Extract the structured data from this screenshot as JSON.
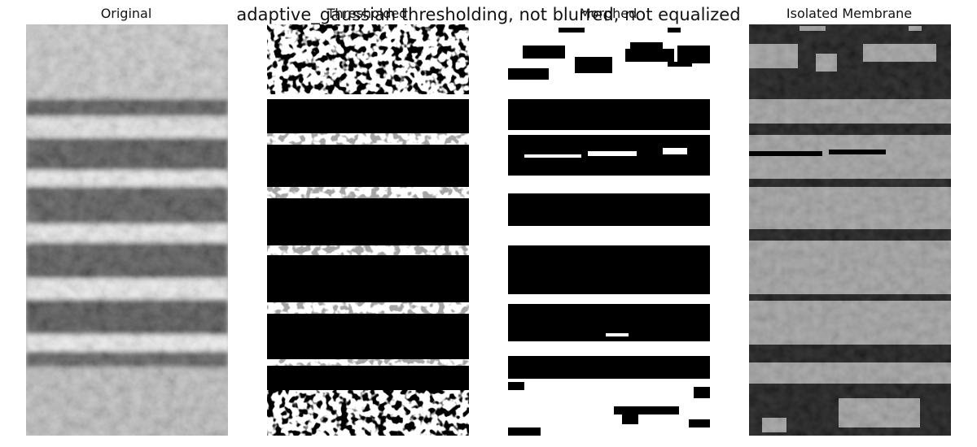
{
  "figure": {
    "suptitle": "adaptive_gaussian thresholding, not blurred, not equalized"
  },
  "panels": [
    {
      "title": "Original"
    },
    {
      "title": "Thresholded"
    },
    {
      "title": "Morphed"
    },
    {
      "title": "Isolated Membrane"
    }
  ],
  "colors": {
    "background": "#ffffff",
    "mask_dark": "#000000",
    "membrane_gray": "#9a9a9a"
  }
}
